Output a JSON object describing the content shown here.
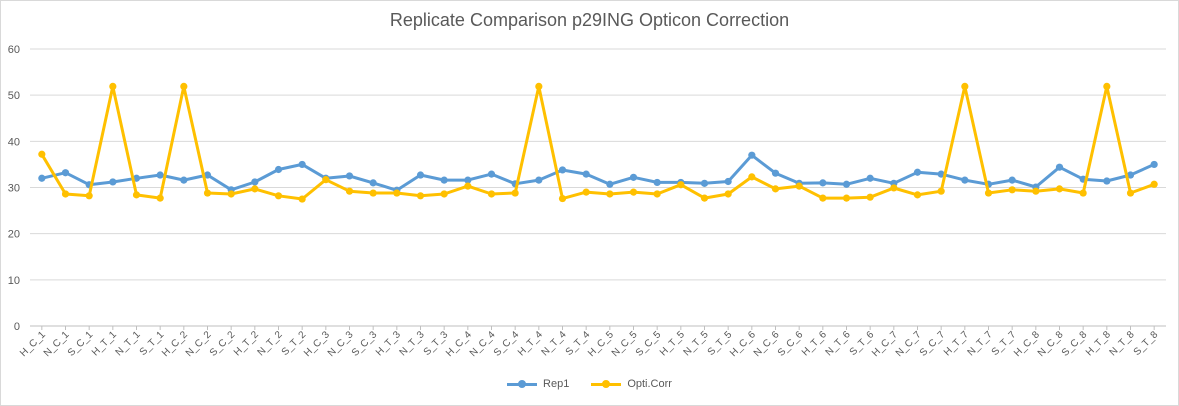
{
  "chart_data": {
    "type": "line",
    "title": "Replicate Comparison p29ING Opticon Correction",
    "xlabel": "",
    "ylabel": "",
    "ylim": [
      0,
      60
    ],
    "yticks": [
      0,
      10,
      20,
      30,
      40,
      50,
      60
    ],
    "grid": true,
    "legend_position": "bottom",
    "categories": [
      "H_C_1",
      "N_C_1",
      "S_C_1",
      "H_T_1",
      "N_T_1",
      "S_T_1",
      "H_C_2",
      "N_C_2",
      "S_C_2",
      "H_T_2",
      "N_T_2",
      "S_T_2",
      "H_C_3",
      "N_C_3",
      "S_C_3",
      "H_T_3",
      "N_T_3",
      "S_T_3",
      "H_C_4",
      "N_C_4",
      "S_C_4",
      "H_T_4",
      "N_T_4",
      "S_T_4",
      "H_C_5",
      "N_C_5",
      "S_C_5",
      "H_T_5",
      "N_T_5",
      "S_T_5",
      "H_C_6",
      "N_C_6",
      "S_C_6",
      "H_T_6",
      "N_T_6",
      "S_T_6",
      "H_C_7",
      "N_C_7",
      "S_C_7",
      "H_T_7",
      "N_T_7",
      "S_T_7",
      "H_C_8",
      "N_C_8",
      "S_C_8",
      "H_T_8",
      "N_T_8",
      "S_T_8"
    ],
    "series": [
      {
        "name": "Rep1",
        "color": "#5b9bd5",
        "values": [
          32.0,
          33.2,
          30.6,
          31.2,
          32.0,
          32.7,
          31.6,
          32.7,
          29.5,
          31.2,
          33.9,
          35.0,
          32.0,
          32.5,
          31.0,
          29.4,
          32.7,
          31.6,
          31.6,
          32.9,
          30.8,
          31.6,
          33.8,
          32.9,
          30.7,
          32.2,
          31.1,
          31.1,
          30.9,
          31.3,
          37.0,
          33.1,
          30.9,
          31.0,
          30.7,
          32.0,
          30.9,
          33.3,
          32.9,
          31.6,
          30.7,
          31.6,
          30.1,
          34.4,
          31.8,
          31.4,
          32.7,
          35.0
        ]
      },
      {
        "name": "Opti.Corr",
        "color": "#ffc000",
        "values": [
          37.2,
          28.6,
          28.2,
          51.9,
          28.4,
          27.7,
          51.9,
          28.8,
          28.6,
          29.7,
          28.2,
          27.5,
          31.7,
          29.2,
          28.8,
          28.8,
          28.2,
          28.6,
          30.3,
          28.6,
          28.8,
          51.9,
          27.6,
          29.0,
          28.6,
          29.0,
          28.6,
          30.6,
          27.7,
          28.6,
          32.3,
          29.7,
          30.3,
          27.7,
          27.7,
          27.9,
          29.9,
          28.4,
          29.2,
          51.9,
          28.8,
          29.5,
          29.2,
          29.7,
          28.8,
          51.9,
          28.8,
          30.7
        ]
      }
    ]
  }
}
